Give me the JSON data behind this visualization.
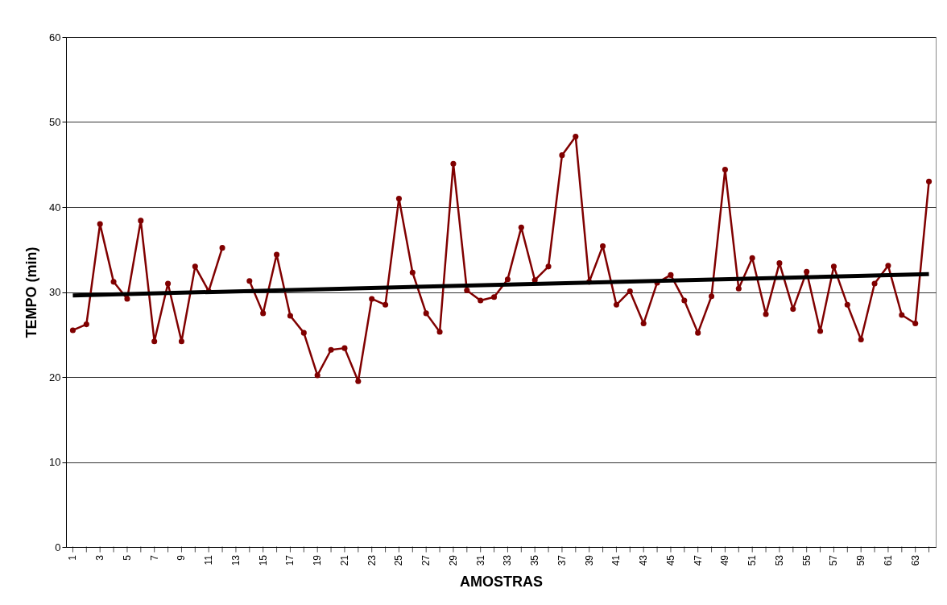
{
  "chart_data": {
    "type": "line",
    "xlabel": "AMOSTRAS",
    "ylabel": "TEMPO (min)",
    "x": [
      1,
      2,
      3,
      4,
      5,
      6,
      7,
      8,
      9,
      10,
      11,
      12,
      13,
      14,
      15,
      16,
      17,
      18,
      19,
      20,
      21,
      22,
      23,
      24,
      25,
      26,
      27,
      28,
      29,
      30,
      31,
      32,
      33,
      34,
      35,
      36,
      37,
      38,
      39,
      40,
      41,
      42,
      43,
      44,
      45,
      46,
      47,
      48,
      49,
      50,
      51,
      52,
      53,
      54,
      55,
      56,
      57,
      58,
      59,
      60,
      61,
      62,
      63,
      64
    ],
    "series": [
      {
        "color": "#800000",
        "marker": "circle",
        "values": [
          25.5,
          26.2,
          38.0,
          31.2,
          29.2,
          38.4,
          24.2,
          31.0,
          24.2,
          33.0,
          30.1,
          35.2,
          null,
          31.3,
          27.5,
          34.4,
          27.2,
          25.2,
          20.2,
          23.2,
          23.4,
          19.5,
          29.2,
          28.5,
          41.0,
          32.3,
          27.5,
          25.3,
          45.1,
          30.2,
          29.0,
          29.4,
          31.5,
          37.6,
          31.4,
          33.0,
          46.1,
          48.3,
          31.2,
          35.4,
          28.5,
          30.1,
          26.3,
          31.1,
          32.0,
          29.0,
          25.2,
          29.5,
          44.4,
          30.4,
          34.0,
          27.4,
          33.4,
          28.0,
          32.4,
          25.4,
          33.0,
          28.5,
          24.4,
          31.0,
          33.1,
          27.3,
          26.3,
          43.0
        ]
      },
      {
        "type": "line",
        "color": "#000000",
        "marker": "none",
        "x": [
          1,
          64
        ],
        "values": [
          29.6,
          32.1
        ]
      }
    ],
    "xlim": [
      0.5,
      64.5
    ],
    "xticks": [
      1,
      {
        "value": 2,
        "label": null
      },
      3,
      {
        "value": 4,
        "label": null
      },
      5,
      {
        "value": 6,
        "label": null
      },
      7,
      {
        "value": 8,
        "label": null
      },
      9,
      {
        "value": 10,
        "label": null
      },
      11,
      {
        "value": 12,
        "label": null
      },
      13,
      {
        "value": 14,
        "label": null
      },
      15,
      {
        "value": 16,
        "label": null
      },
      17,
      {
        "value": 18,
        "label": null
      },
      19,
      {
        "value": 20,
        "label": null
      },
      21,
      {
        "value": 22,
        "label": null
      },
      23,
      {
        "value": 24,
        "label": null
      },
      25,
      {
        "value": 26,
        "label": null
      },
      27,
      {
        "value": 28,
        "label": null
      },
      29,
      {
        "value": 30,
        "label": null
      },
      31,
      {
        "value": 32,
        "label": null
      },
      33,
      {
        "value": 34,
        "label": null
      },
      35,
      {
        "value": 36,
        "label": null
      },
      37,
      {
        "value": 38,
        "label": null
      },
      39,
      {
        "value": 40,
        "label": null
      },
      41,
      {
        "value": 42,
        "label": null
      },
      43,
      {
        "value": 44,
        "label": null
      },
      45,
      {
        "value": 46,
        "label": null
      },
      47,
      {
        "value": 48,
        "label": null
      },
      49,
      {
        "value": 50,
        "label": null
      },
      51,
      {
        "value": 52,
        "label": null
      },
      53,
      {
        "value": 54,
        "label": null
      },
      55,
      {
        "value": 56,
        "label": null
      },
      57,
      {
        "value": 58,
        "label": null
      },
      59,
      {
        "value": 60,
        "label": null
      },
      61,
      {
        "value": 62,
        "label": null
      },
      63,
      {
        "value": 64,
        "label": null
      }
    ],
    "ylim": [
      0,
      60
    ],
    "yticks": [
      0,
      10,
      20,
      30,
      40,
      50,
      60
    ],
    "grid": "y"
  }
}
